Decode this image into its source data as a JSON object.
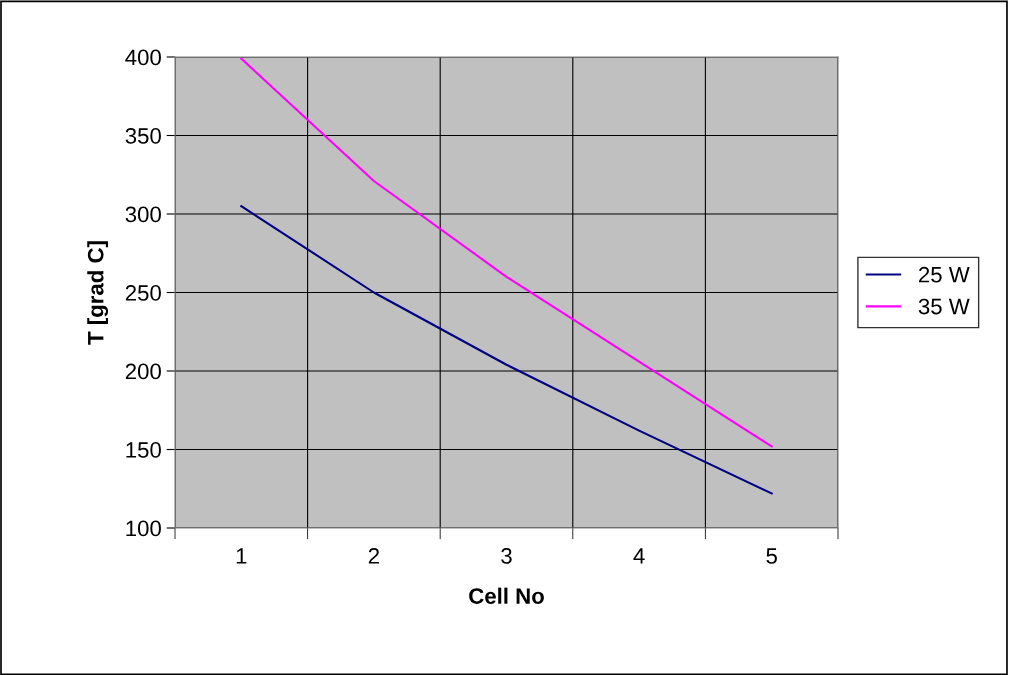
{
  "chart_data": {
    "type": "line",
    "xlabel": "Cell No",
    "ylabel": "T [grad C]",
    "categories": [
      "1",
      "2",
      "3",
      "4",
      "5"
    ],
    "series": [
      {
        "name": "25 W",
        "color": "#000080",
        "values": [
          305,
          250,
          204,
          162,
          122
        ]
      },
      {
        "name": "35 W",
        "color": "#ff00ff",
        "values": [
          399,
          321,
          260,
          206,
          152
        ]
      }
    ],
    "ylim": [
      100,
      400
    ],
    "yticks": [
      100,
      150,
      200,
      250,
      300,
      350,
      400
    ],
    "grid": true,
    "legend": "right",
    "marker": "none",
    "line_style": "solid"
  }
}
